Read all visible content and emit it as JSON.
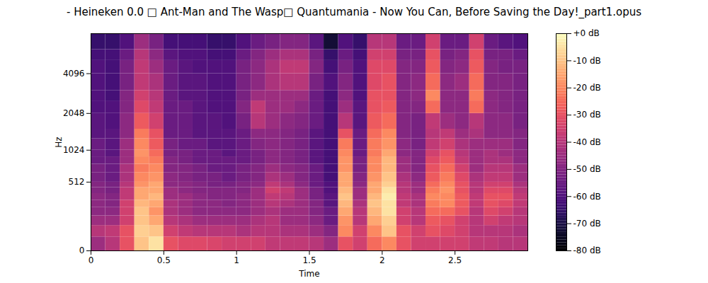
{
  "chart_data": {
    "type": "heatmap",
    "title": "- Heineken 0.0 □ Ant-Man and The Wasp□ Quantumania - Now You Can, Before Saving the Day!_part1.opus",
    "x_label": "Time",
    "y_label": "Hz",
    "xlim": [
      0,
      3.0
    ],
    "xticks": [
      0,
      0.5,
      1,
      1.5,
      2,
      2.5
    ],
    "ylim": [
      0,
      8000
    ],
    "yticks": [
      0,
      512,
      1024,
      2048,
      4096
    ],
    "color": "magma",
    "x_edges": [
      0,
      0.1,
      0.2,
      0.3,
      0.4,
      0.5,
      0.6,
      0.7,
      0.8,
      0.9,
      1.0,
      1.1,
      1.2,
      1.3,
      1.4,
      1.5,
      1.6,
      1.7,
      1.8,
      1.9,
      2.0,
      2.1,
      2.2,
      2.3,
      2.4,
      2.5,
      2.6,
      2.7,
      2.8,
      2.9,
      3.0
    ],
    "y_edges": [
      0,
      64,
      128,
      192,
      256,
      320,
      384,
      448,
      512,
      640,
      768,
      896,
      1024,
      1280,
      1536,
      2048,
      2560,
      3072,
      4096,
      5120,
      6144,
      8000
    ],
    "cells": [
      [
        -45,
        -40,
        -30,
        -10,
        -5,
        -30,
        -32,
        -32,
        -33,
        -35,
        -35,
        -35,
        -38,
        -38,
        -38,
        -40,
        -45,
        -30,
        -35,
        -25,
        -20,
        -30,
        -35,
        -35,
        -35,
        -35,
        -38,
        -38,
        -40,
        -40
      ],
      [
        -40,
        -38,
        -30,
        -8,
        -10,
        -35,
        -38,
        -40,
        -40,
        -40,
        -42,
        -40,
        -40,
        -42,
        -42,
        -45,
        -50,
        -20,
        -35,
        -20,
        -10,
        -30,
        -35,
        -30,
        -32,
        -35,
        -40,
        -40,
        -40,
        -42
      ],
      [
        -45,
        -45,
        -35,
        -10,
        -15,
        -40,
        -42,
        -45,
        -45,
        -45,
        -45,
        -42,
        -40,
        -45,
        -45,
        -48,
        -55,
        -18,
        -40,
        -15,
        -8,
        -35,
        -40,
        -28,
        -30,
        -35,
        -40,
        -35,
        -38,
        -40
      ],
      [
        -48,
        -48,
        -35,
        -10,
        -18,
        -42,
        -45,
        -48,
        -48,
        -48,
        -48,
        -45,
        -42,
        -45,
        -45,
        -50,
        -55,
        -15,
        -40,
        -12,
        -5,
        -35,
        -40,
        -25,
        -25,
        -30,
        -40,
        -32,
        -35,
        -40
      ],
      [
        -48,
        -50,
        -35,
        -12,
        -15,
        -42,
        -45,
        -48,
        -48,
        -50,
        -48,
        -45,
        -40,
        -42,
        -45,
        -50,
        -58,
        -12,
        -42,
        -10,
        -5,
        -38,
        -42,
        -22,
        -20,
        -28,
        -38,
        -30,
        -32,
        -38
      ],
      [
        -48,
        -50,
        -38,
        -15,
        -12,
        -45,
        -45,
        -48,
        -50,
        -50,
        -48,
        -45,
        -38,
        -40,
        -45,
        -52,
        -58,
        -10,
        -45,
        -12,
        -3,
        -38,
        -42,
        -20,
        -20,
        -28,
        -38,
        -30,
        -30,
        -38
      ],
      [
        -50,
        -52,
        -38,
        -15,
        -15,
        -45,
        -48,
        -50,
        -50,
        -50,
        -50,
        -45,
        -35,
        -38,
        -45,
        -52,
        -60,
        -12,
        -45,
        -15,
        -5,
        -40,
        -45,
        -22,
        -18,
        -30,
        -40,
        -32,
        -32,
        -40
      ],
      [
        -50,
        -52,
        -40,
        -18,
        -15,
        -48,
        -48,
        -50,
        -52,
        -52,
        -50,
        -48,
        -38,
        -42,
        -48,
        -55,
        -60,
        -15,
        -48,
        -15,
        -8,
        -40,
        -45,
        -25,
        -20,
        -30,
        -40,
        -35,
        -35,
        -42
      ],
      [
        -52,
        -55,
        -42,
        -20,
        -18,
        -48,
        -50,
        -52,
        -52,
        -55,
        -52,
        -50,
        -42,
        -45,
        -50,
        -55,
        -62,
        -15,
        -50,
        -18,
        -10,
        -42,
        -48,
        -28,
        -22,
        -32,
        -42,
        -38,
        -38,
        -45
      ],
      [
        -52,
        -55,
        -42,
        -22,
        -20,
        -50,
        -50,
        -52,
        -55,
        -55,
        -52,
        -50,
        -45,
        -48,
        -50,
        -55,
        -62,
        -18,
        -52,
        -20,
        -12,
        -45,
        -50,
        -30,
        -25,
        -35,
        -45,
        -40,
        -40,
        -45
      ],
      [
        -55,
        -55,
        -45,
        -20,
        -22,
        -50,
        -52,
        -55,
        -55,
        -55,
        -55,
        -52,
        -48,
        -50,
        -52,
        -58,
        -62,
        -18,
        -52,
        -20,
        -12,
        -45,
        -50,
        -32,
        -28,
        -38,
        -45,
        -42,
        -42,
        -48
      ],
      [
        -55,
        -58,
        -45,
        -18,
        -25,
        -52,
        -52,
        -55,
        -55,
        -58,
        -55,
        -52,
        -48,
        -50,
        -52,
        -58,
        -62,
        -20,
        -55,
        -22,
        -15,
        -48,
        -50,
        -35,
        -30,
        -40,
        -45,
        -42,
        -45,
        -48
      ],
      [
        -55,
        -58,
        -45,
        -20,
        -28,
        -52,
        -55,
        -55,
        -58,
        -58,
        -55,
        -50,
        -48,
        -50,
        -52,
        -58,
        -62,
        -22,
        -55,
        -22,
        -18,
        -48,
        -52,
        -38,
        -35,
        -42,
        -45,
        -45,
        -45,
        -50
      ],
      [
        -58,
        -58,
        -48,
        -22,
        -30,
        -55,
        -55,
        -58,
        -58,
        -58,
        -55,
        -48,
        -48,
        -50,
        -52,
        -58,
        -62,
        -30,
        -55,
        -25,
        -20,
        -50,
        -52,
        -40,
        -38,
        -45,
        -42,
        -48,
        -48,
        -50
      ],
      [
        -58,
        -60,
        -48,
        -28,
        -35,
        -55,
        -55,
        -58,
        -58,
        -60,
        -52,
        -40,
        -45,
        -48,
        -50,
        -55,
        -62,
        -40,
        -58,
        -28,
        -25,
        -50,
        -52,
        -38,
        -45,
        -48,
        -40,
        -48,
        -48,
        -52
      ],
      [
        -60,
        -60,
        -50,
        -32,
        -38,
        -55,
        -55,
        -58,
        -60,
        -60,
        -50,
        -38,
        -45,
        -45,
        -48,
        -55,
        -62,
        -45,
        -58,
        -30,
        -28,
        -50,
        -50,
        -25,
        -48,
        -48,
        -25,
        -48,
        -50,
        -52
      ],
      [
        -60,
        -62,
        -50,
        -35,
        -40,
        -55,
        -58,
        -58,
        -60,
        -60,
        -52,
        -45,
        -45,
        -45,
        -45,
        -55,
        -62,
        -48,
        -60,
        -30,
        -30,
        -50,
        -48,
        -20,
        -48,
        -48,
        -22,
        -48,
        -50,
        -52
      ],
      [
        -60,
        -62,
        -52,
        -38,
        -42,
        -55,
        -58,
        -58,
        -60,
        -60,
        -52,
        -48,
        -42,
        -40,
        -40,
        -52,
        -60,
        -50,
        -60,
        -32,
        -30,
        -50,
        -48,
        -25,
        -48,
        -45,
        -25,
        -50,
        -50,
        -52
      ],
      [
        -60,
        -62,
        -52,
        -38,
        -45,
        -55,
        -58,
        -60,
        -60,
        -60,
        -52,
        -48,
        -42,
        -38,
        -38,
        -50,
        -62,
        -52,
        -60,
        -32,
        -32,
        -50,
        -50,
        -28,
        -50,
        -48,
        -28,
        -50,
        -52,
        -52
      ],
      [
        -62,
        -62,
        -55,
        -40,
        -48,
        -58,
        -60,
        -60,
        -62,
        -62,
        -55,
        -50,
        -45,
        -42,
        -42,
        -52,
        -65,
        -55,
        -62,
        -35,
        -35,
        -52,
        -52,
        -30,
        -52,
        -50,
        -30,
        -52,
        -52,
        -55
      ],
      [
        -65,
        -65,
        -60,
        -45,
        -52,
        -62,
        -62,
        -62,
        -65,
        -65,
        -60,
        -55,
        -52,
        -50,
        -50,
        -58,
        -72,
        -60,
        -65,
        -40,
        -40,
        -55,
        -55,
        -35,
        -55,
        -55,
        -35,
        -55,
        -58,
        -60
      ]
    ],
    "colorbar": {
      "range": [
        -80,
        0
      ],
      "ticks": [
        {
          "value": 0,
          "label": "+0 dB"
        },
        {
          "value": -10,
          "label": "-10 dB"
        },
        {
          "value": -20,
          "label": "-20 dB"
        },
        {
          "value": -30,
          "label": "-30 dB"
        },
        {
          "value": -40,
          "label": "-40 dB"
        },
        {
          "value": -50,
          "label": "-50 dB"
        },
        {
          "value": -60,
          "label": "-60 dB"
        },
        {
          "value": -70,
          "label": "-70 dB"
        },
        {
          "value": -80,
          "label": "-80 dB"
        }
      ]
    }
  }
}
